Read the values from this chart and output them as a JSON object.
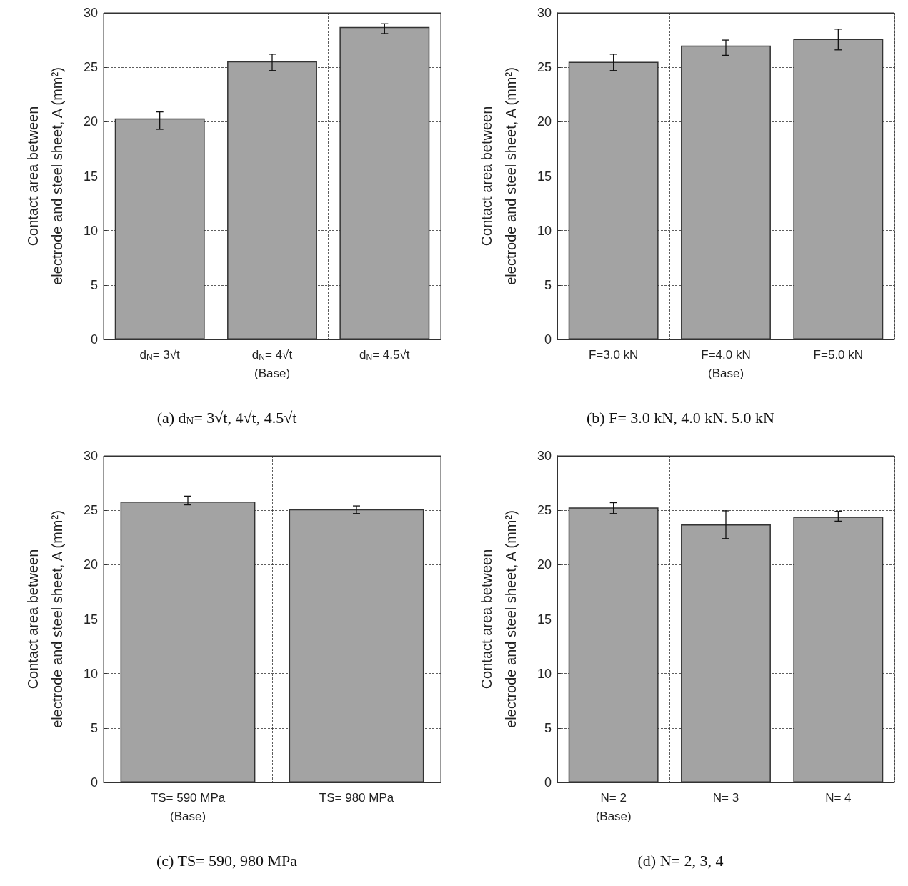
{
  "chart_data": [
    {
      "type": "bar",
      "title": "(a) d$_{N}$= 3√t, 4√t, 4.5√t",
      "ylabel": "Contact area between\nelectrode and steel sheet, A (mm²)",
      "categories": [
        "d$_{N}$= 3√t",
        "d$_{N}$= 4√t\n(Base)",
        "d$_{N}$= 4.5√t"
      ],
      "values": [
        20.3,
        25.55,
        28.7
      ],
      "errors": [
        [
          19.3,
          20.9
        ],
        [
          24.7,
          26.2
        ],
        [
          28.1,
          29.0
        ]
      ],
      "color": "#a3a3a3",
      "ylim": [
        0,
        30
      ],
      "yticks": [
        0,
        5,
        10,
        15,
        20,
        25,
        30
      ],
      "grid": true
    },
    {
      "type": "bar",
      "title": "(b) F= 3.0 kN, 4.0 kN. 5.0 kN",
      "ylabel": "Contact area between\nelectrode and steel sheet, A (mm²)",
      "categories": [
        "F=3.0 kN",
        "F=4.0 kN\n(Base)",
        "F=5.0 kN"
      ],
      "values": [
        25.5,
        27.0,
        27.6
      ],
      "errors": [
        [
          24.7,
          26.2
        ],
        [
          26.1,
          27.5
        ],
        [
          26.6,
          28.5
        ]
      ],
      "color": "#a3a3a3",
      "ylim": [
        0,
        30
      ],
      "yticks": [
        0,
        5,
        10,
        15,
        20,
        25,
        30
      ],
      "grid": true
    },
    {
      "type": "bar",
      "title": "(c) TS= 590, 980 MPa",
      "ylabel": "Contact area between\nelectrode and steel sheet, A (mm²)",
      "categories": [
        "TS= 590 MPa\n(Base)",
        "TS= 980 MPa"
      ],
      "values": [
        25.8,
        25.1
      ],
      "errors": [
        [
          25.5,
          26.3
        ],
        [
          24.7,
          25.4
        ]
      ],
      "color": "#a3a3a3",
      "ylim": [
        0,
        30
      ],
      "yticks": [
        0,
        5,
        10,
        15,
        20,
        25,
        30
      ],
      "grid": true
    },
    {
      "type": "bar",
      "title": "(d) N= 2, 3, 4",
      "ylabel": "Contact area between\nelectrode and steel sheet, A (mm²)",
      "categories": [
        "N= 2\n(Base)",
        "N= 3",
        "N= 4"
      ],
      "values": [
        25.25,
        23.7,
        24.4
      ],
      "errors": [
        [
          24.7,
          25.7
        ],
        [
          22.4,
          24.95
        ],
        [
          24.0,
          24.9
        ]
      ],
      "color": "#a3a3a3",
      "ylim": [
        0,
        30
      ],
      "yticks": [
        0,
        5,
        10,
        15,
        20,
        25,
        30
      ],
      "grid": true
    }
  ]
}
